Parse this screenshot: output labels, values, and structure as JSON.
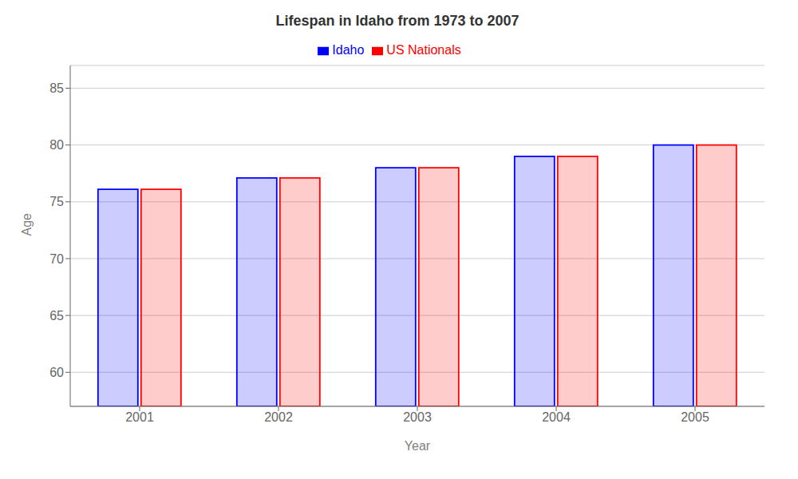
{
  "chart_data": {
    "type": "bar",
    "title": "Lifespan in Idaho from 1973 to 2007",
    "xlabel": "Year",
    "ylabel": "Age",
    "categories": [
      "2001",
      "2002",
      "2003",
      "2004",
      "2005"
    ],
    "series": [
      {
        "name": "Idaho",
        "color": "#0000ff",
        "values": [
          76.1,
          77.1,
          78.0,
          79.0,
          80.0
        ]
      },
      {
        "name": "US Nationals",
        "color": "#ff0000",
        "values": [
          76.1,
          77.1,
          78.0,
          79.0,
          80.0
        ]
      }
    ],
    "ylim": [
      57,
      87
    ],
    "yticks": [
      60,
      65,
      70,
      75,
      80,
      85
    ],
    "grid": true,
    "legend": "top"
  }
}
